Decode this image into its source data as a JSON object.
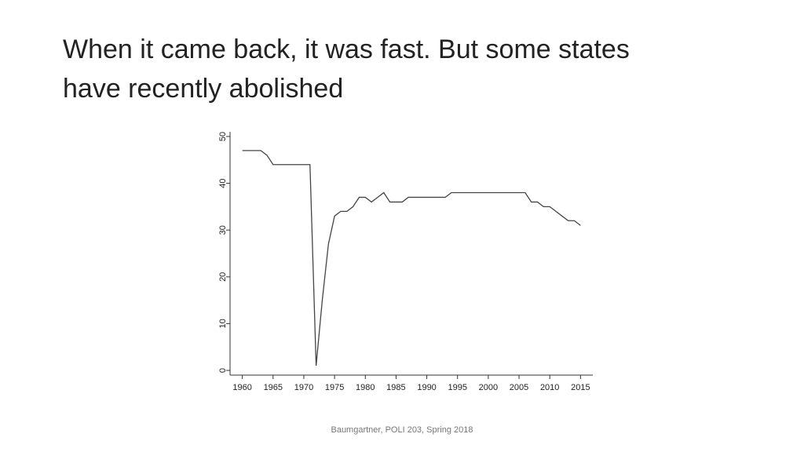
{
  "slide": {
    "title": "When it came back, it was fast. But some states have recently abolished",
    "footer": "Baumgartner, POLI 203, Spring 2018"
  },
  "chart_data": {
    "type": "line",
    "color": "#444444",
    "x": [
      1960,
      1961,
      1962,
      1963,
      1964,
      1965,
      1966,
      1967,
      1968,
      1969,
      1970,
      1971,
      1972,
      1973,
      1974,
      1975,
      1976,
      1977,
      1978,
      1979,
      1980,
      1981,
      1982,
      1983,
      1984,
      1985,
      1986,
      1987,
      1988,
      1989,
      1990,
      1991,
      1992,
      1993,
      1994,
      1995,
      1996,
      1997,
      1998,
      1999,
      2000,
      2001,
      2002,
      2003,
      2004,
      2005,
      2006,
      2007,
      2008,
      2009,
      2010,
      2011,
      2012,
      2013,
      2014,
      2015
    ],
    "values": [
      47,
      47,
      47,
      47,
      46,
      44,
      44,
      44,
      44,
      44,
      44,
      44,
      1,
      15,
      27,
      33,
      34,
      34,
      35,
      37,
      37,
      36,
      37,
      38,
      36,
      36,
      36,
      37,
      37,
      37,
      37,
      37,
      37,
      37,
      38,
      38,
      38,
      38,
      38,
      38,
      38,
      38,
      38,
      38,
      38,
      38,
      38,
      36,
      36,
      35,
      35,
      34,
      33,
      32,
      32,
      31
    ],
    "xlim": [
      1958,
      2017
    ],
    "xticks": [
      1960,
      1965,
      1970,
      1975,
      1980,
      1985,
      1990,
      1995,
      2000,
      2005,
      2010,
      2015
    ],
    "ylim": [
      -1,
      51
    ],
    "yticks": [
      0,
      10,
      20,
      30,
      40,
      50
    ]
  }
}
